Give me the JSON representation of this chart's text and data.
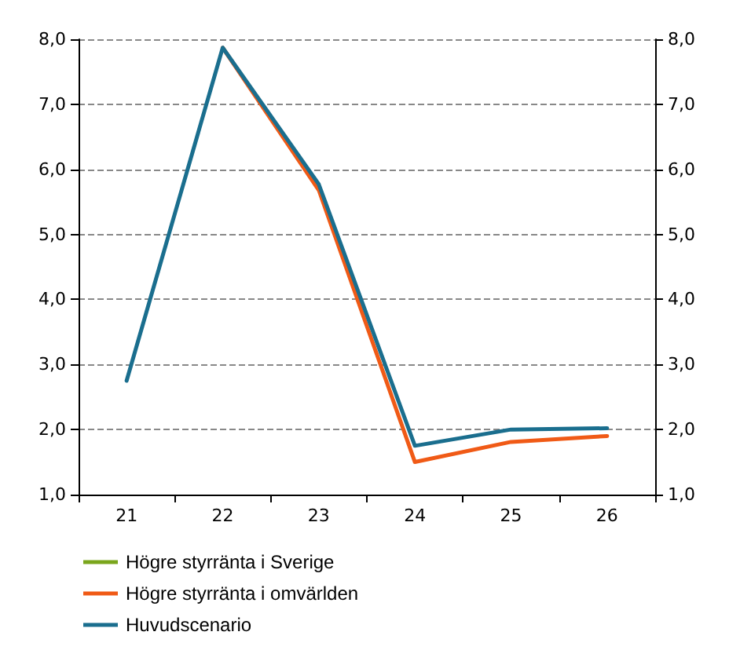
{
  "chart_data": {
    "type": "line",
    "categories": [
      "21",
      "22",
      "23",
      "24",
      "25",
      "26"
    ],
    "series": [
      {
        "name": "Högre styrränta i Sverige",
        "color": "#7aa61c",
        "values": [
          null,
          null,
          null,
          null,
          null,
          null
        ]
      },
      {
        "name": "Högre styrränta i omvärlden",
        "color": "#f05a16",
        "values": [
          null,
          7.87,
          5.68,
          1.5,
          1.81,
          1.9
        ]
      },
      {
        "name": "Huvudscenario",
        "color": "#1a6e8e",
        "values": [
          2.75,
          7.87,
          5.77,
          1.75,
          2.0,
          2.02
        ]
      }
    ],
    "ylim": [
      1,
      8
    ],
    "yticks": [
      {
        "value": 1,
        "label": "1,0"
      },
      {
        "value": 2,
        "label": "2,0"
      },
      {
        "value": 3,
        "label": "3,0"
      },
      {
        "value": 4,
        "label": "4,0"
      },
      {
        "value": 5,
        "label": "5,0"
      },
      {
        "value": 6,
        "label": "6,0"
      },
      {
        "value": 7,
        "label": "7,0"
      },
      {
        "value": 8,
        "label": "8,0"
      }
    ],
    "y2lim": [
      1,
      8
    ],
    "y2ticks": [
      {
        "value": 1,
        "label": "1,0"
      },
      {
        "value": 2,
        "label": "2,0"
      },
      {
        "value": 3,
        "label": "3,0"
      },
      {
        "value": 4,
        "label": "4,0"
      },
      {
        "value": 5,
        "label": "5,0"
      },
      {
        "value": 6,
        "label": "6,0"
      },
      {
        "value": 7,
        "label": "7,0"
      },
      {
        "value": 8,
        "label": "8,0"
      }
    ],
    "grid": "y",
    "legend": "bottom left",
    "marker": "none",
    "line_style": "solid"
  }
}
